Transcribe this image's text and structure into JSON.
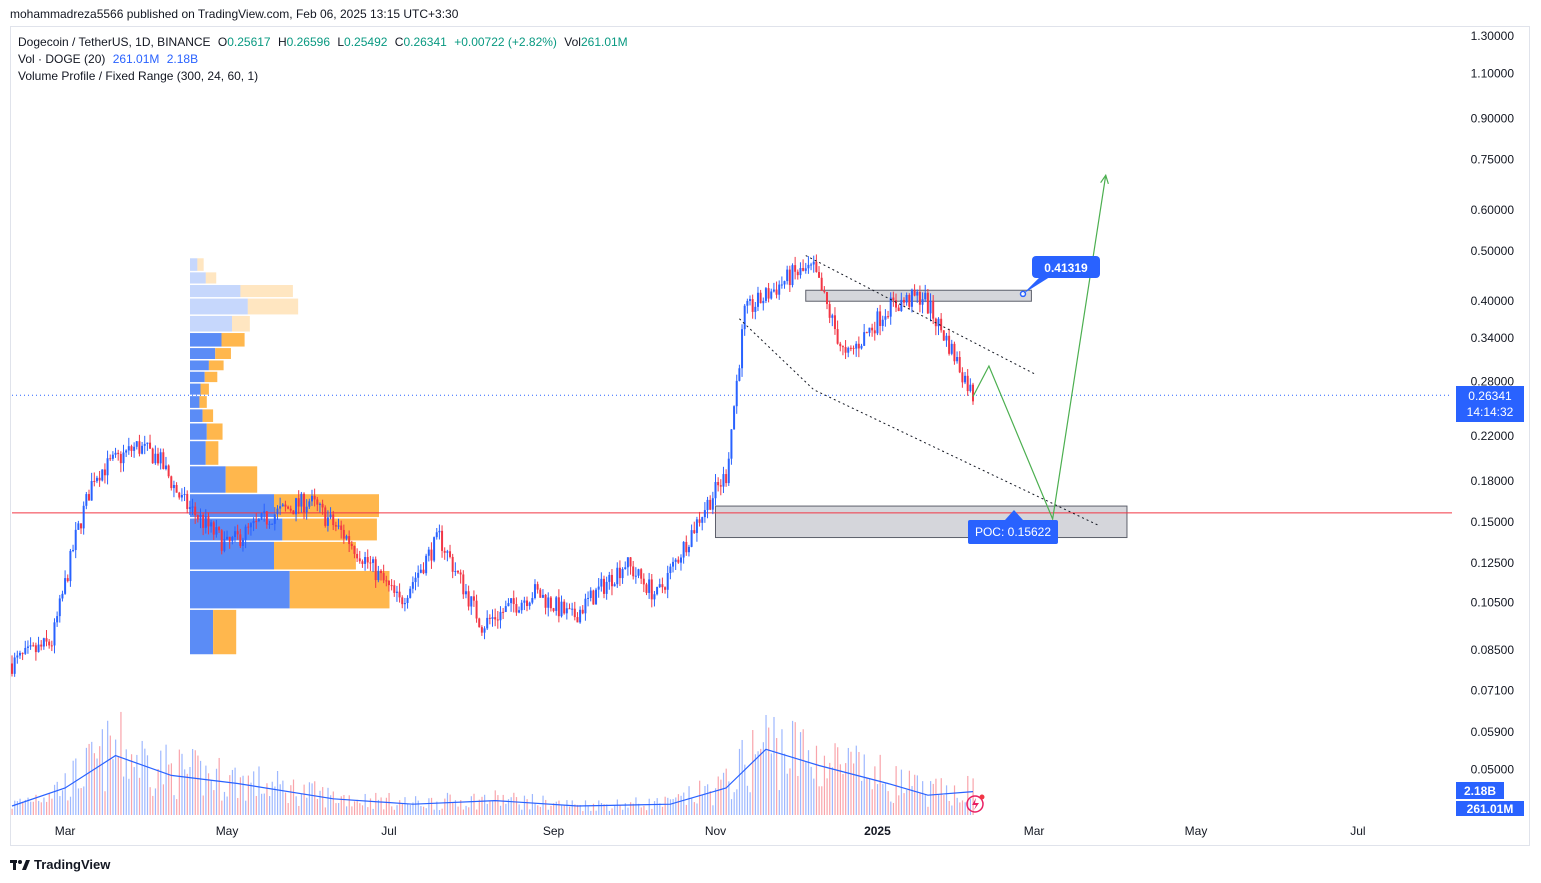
{
  "header": "mohammadreza5566 published on TradingView.com, Feb 06, 2025 13:15 UTC+3:30",
  "legend": {
    "symbol": "Dogecoin / TetherUS, 1D, BINANCE",
    "o_label": "O",
    "o": "0.25617",
    "h_label": "H",
    "h": "0.26596",
    "l_label": "L",
    "l": "0.25492",
    "c_label": "C",
    "c": "0.26341",
    "change": "+0.00722 (+2.82%)",
    "vol_label": "Vol",
    "vol": "261.01M",
    "vol_ind": "Vol · DOGE (20)",
    "vol_ind_v1": "261.01M",
    "vol_ind_v2": "2.18B",
    "vp": "Volume Profile / Fixed Range (300, 24, 60, 1)"
  },
  "brand": "TradingView",
  "colors": {
    "up": "#2962ff",
    "down": "#f23645",
    "profile_up": "#5b8cf6",
    "profile_down": "#ffb74d",
    "poc": "#f23645",
    "target": "#4caf50"
  },
  "chart_data": {
    "type": "candlestick",
    "y_scale": "log",
    "y_ticks": [
      "1.30000",
      "1.10000",
      "0.90000",
      "0.75000",
      "0.60000",
      "0.50000",
      "0.40000",
      "0.34000",
      "0.28000",
      "0.22000",
      "0.18000",
      "0.15000",
      "0.12500",
      "0.10500",
      "0.08500",
      "0.07100",
      "0.05900",
      "0.05000"
    ],
    "x_ticks": [
      "Mar",
      "May",
      "Jul",
      "Sep",
      "Nov",
      "2025",
      "Mar",
      "May",
      "Jul"
    ],
    "price_path": [
      {
        "date": "2024-02-10",
        "price": 0.08
      },
      {
        "date": "2024-02-25",
        "price": 0.088
      },
      {
        "date": "2024-03-05",
        "price": 0.14
      },
      {
        "date": "2024-03-12",
        "price": 0.185
      },
      {
        "date": "2024-03-28",
        "price": 0.21
      },
      {
        "date": "2024-04-05",
        "price": 0.2
      },
      {
        "date": "2024-04-14",
        "price": 0.165
      },
      {
        "date": "2024-05-01",
        "price": 0.135
      },
      {
        "date": "2024-05-18",
        "price": 0.155
      },
      {
        "date": "2024-06-01",
        "price": 0.165
      },
      {
        "date": "2024-06-15",
        "price": 0.14
      },
      {
        "date": "2024-06-25",
        "price": 0.122
      },
      {
        "date": "2024-07-05",
        "price": 0.105
      },
      {
        "date": "2024-07-20",
        "price": 0.14
      },
      {
        "date": "2024-08-05",
        "price": 0.095
      },
      {
        "date": "2024-08-25",
        "price": 0.11
      },
      {
        "date": "2024-09-08",
        "price": 0.098
      },
      {
        "date": "2024-09-28",
        "price": 0.125
      },
      {
        "date": "2024-10-10",
        "price": 0.108
      },
      {
        "date": "2024-10-28",
        "price": 0.16
      },
      {
        "date": "2024-11-05",
        "price": 0.185
      },
      {
        "date": "2024-11-12",
        "price": 0.38
      },
      {
        "date": "2024-11-30",
        "price": 0.45
      },
      {
        "date": "2024-12-08",
        "price": 0.46
      },
      {
        "date": "2024-12-20",
        "price": 0.31
      },
      {
        "date": "2025-01-05",
        "price": 0.39
      },
      {
        "date": "2025-01-18",
        "price": 0.41
      },
      {
        "date": "2025-01-28",
        "price": 0.33
      },
      {
        "date": "2025-02-06",
        "price": 0.26341
      }
    ],
    "volume_profile": [
      {
        "price": 0.47,
        "buy": 7,
        "sell": 6
      },
      {
        "price": 0.44,
        "buy": 15,
        "sell": 10
      },
      {
        "price": 0.42,
        "buy": 48,
        "sell": 50
      },
      {
        "price": 0.39,
        "buy": 55,
        "sell": 48
      },
      {
        "price": 0.36,
        "buy": 40,
        "sell": 17
      },
      {
        "price": 0.335,
        "buy": 30,
        "sell": 22
      },
      {
        "price": 0.315,
        "buy": 24,
        "sell": 15
      },
      {
        "price": 0.3,
        "buy": 18,
        "sell": 14
      },
      {
        "price": 0.285,
        "buy": 14,
        "sell": 12
      },
      {
        "price": 0.27,
        "buy": 10,
        "sell": 8
      },
      {
        "price": 0.255,
        "buy": 9,
        "sell": 7
      },
      {
        "price": 0.24,
        "buy": 12,
        "sell": 10
      },
      {
        "price": 0.225,
        "buy": 16,
        "sell": 15
      },
      {
        "price": 0.205,
        "buy": 15,
        "sell": 12
      },
      {
        "price": 0.18,
        "buy": 34,
        "sell": 30
      },
      {
        "price": 0.16,
        "buy": 80,
        "sell": 100
      },
      {
        "price": 0.145,
        "buy": 88,
        "sell": 90
      },
      {
        "price": 0.13,
        "buy": 80,
        "sell": 78
      },
      {
        "price": 0.112,
        "buy": 95,
        "sell": 95
      },
      {
        "price": 0.092,
        "buy": 22,
        "sell": 22
      }
    ],
    "volume_ma": [
      {
        "date": "2024-02-10",
        "v": 0.1
      },
      {
        "date": "2024-03-01",
        "v": 0.3
      },
      {
        "date": "2024-03-20",
        "v": 0.66
      },
      {
        "date": "2024-04-10",
        "v": 0.44
      },
      {
        "date": "2024-05-05",
        "v": 0.35
      },
      {
        "date": "2024-06-10",
        "v": 0.18
      },
      {
        "date": "2024-07-10",
        "v": 0.12
      },
      {
        "date": "2024-08-10",
        "v": 0.16
      },
      {
        "date": "2024-09-10",
        "v": 0.1
      },
      {
        "date": "2024-10-15",
        "v": 0.12
      },
      {
        "date": "2024-11-05",
        "v": 0.3
      },
      {
        "date": "2024-11-20",
        "v": 0.73
      },
      {
        "date": "2024-12-10",
        "v": 0.55
      },
      {
        "date": "2025-01-05",
        "v": 0.35
      },
      {
        "date": "2025-01-20",
        "v": 0.22
      },
      {
        "date": "2025-02-06",
        "v": 0.26
      }
    ],
    "poc": "0.15622",
    "poc_label": "POC: 0.15622",
    "poc_value": 0.15622,
    "target_label": "0.41319",
    "target_value": 0.41319,
    "zones": [
      {
        "from": "2024-12-05",
        "to": "2025-02-28",
        "low": 0.4,
        "high": 0.42
      },
      {
        "from": "2024-11-01",
        "to": "2025-04-05",
        "low": 0.14,
        "high": 0.161
      }
    ],
    "channel": {
      "upper": [
        {
          "date": "2024-12-05",
          "price": 0.49
        },
        {
          "date": "2025-03-01",
          "price": 0.29
        }
      ],
      "lower": [
        {
          "date": "2024-11-10",
          "price": 0.37
        },
        {
          "date": "2024-12-08",
          "price": 0.27
        },
        {
          "date": "2025-03-25",
          "price": 0.148
        }
      ]
    },
    "projection": [
      {
        "date": "2025-02-06",
        "price": 0.262
      },
      {
        "date": "2025-02-12",
        "price": 0.3
      },
      {
        "date": "2025-03-08",
        "price": 0.152
      },
      {
        "date": "2025-03-28",
        "price": 0.7
      }
    ],
    "last_price": "0.26341",
    "countdown": "14:14:32",
    "vol_badges": [
      "2.18B",
      "261.01M"
    ]
  }
}
